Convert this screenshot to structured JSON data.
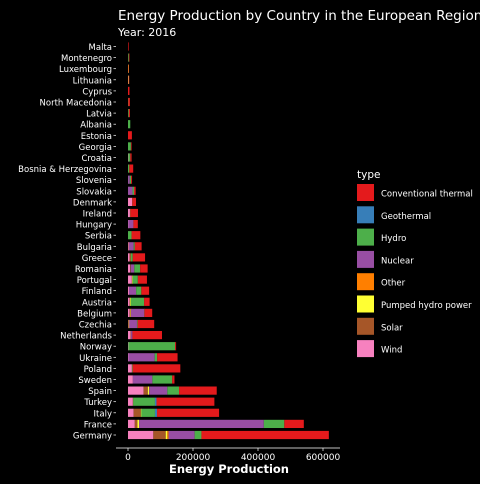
{
  "chart_data": {
    "type": "bar",
    "orientation": "horizontal",
    "stacked": true,
    "title": "Energy Production by Country in the European Region",
    "subtitle": "Year: 2016",
    "xlabel": "Energy Production",
    "ylabel": "",
    "xlim": [
      0,
      640000
    ],
    "xticks": [
      0,
      200000,
      400000,
      600000
    ],
    "xtick_labels": [
      "0",
      "200000",
      "400000",
      "600000"
    ],
    "grid": false,
    "legend_position": "right",
    "legend_title": "type",
    "types": [
      "Conventional thermal",
      "Geothermal",
      "Hydro",
      "Nuclear",
      "Other",
      "Pumped hydro power",
      "Solar",
      "Wind"
    ],
    "stack_order": [
      "Wind",
      "Solar",
      "Pumped hydro power",
      "Other",
      "Nuclear",
      "Hydro",
      "Geothermal",
      "Conventional thermal"
    ],
    "colors": {
      "Conventional thermal": "#e41a1c",
      "Geothermal": "#377eb8",
      "Hydro": "#4daf4a",
      "Nuclear": "#984ea3",
      "Other": "#ff7f00",
      "Pumped hydro power": "#ffff33",
      "Solar": "#a65628",
      "Wind": "#f781bf"
    },
    "categories": [
      "Malta",
      "Montenegro",
      "Luxembourg",
      "Lithuania",
      "Cyprus",
      "North Macedonia",
      "Latvia",
      "Albania",
      "Estonia",
      "Georgia",
      "Croatia",
      "Bosnia & Herzegovina",
      "Slovenia",
      "Slovakia",
      "Denmark",
      "Ireland",
      "Hungary",
      "Serbia",
      "Bulgaria",
      "Greece",
      "Romania",
      "Portugal",
      "Finland",
      "Austria",
      "Belgium",
      "Czechia",
      "Netherlands",
      "Norway",
      "Ukraine",
      "Poland",
      "Sweden",
      "Spain",
      "Turkey",
      "Italy",
      "France",
      "Germany"
    ],
    "series": [
      {
        "name": "Wind",
        "values": [
          0,
          0,
          0,
          600,
          0,
          0,
          0,
          0,
          0,
          0,
          1000,
          0,
          0,
          0,
          13000,
          6000,
          700,
          0,
          1400,
          5000,
          6600,
          12000,
          3000,
          5000,
          5000,
          500,
          8000,
          1000,
          1000,
          12000,
          15000,
          48000,
          15000,
          17500,
          21000,
          78000
        ]
      },
      {
        "name": "Solar",
        "values": [
          0,
          0,
          0,
          0,
          0,
          0,
          0,
          0,
          0,
          0,
          0,
          0,
          0,
          0,
          700,
          0,
          0,
          0,
          1000,
          4000,
          1800,
          800,
          0,
          1000,
          3000,
          2100,
          1600,
          0,
          0,
          0,
          0,
          13000,
          1000,
          22000,
          8000,
          38000
        ]
      },
      {
        "name": "Pumped hydro power",
        "values": [
          0,
          0,
          1000,
          800,
          0,
          0,
          0,
          0,
          0,
          0,
          0,
          0,
          0,
          0,
          0,
          0,
          0,
          0,
          0,
          0,
          0,
          1500,
          0,
          2500,
          1200,
          1000,
          0,
          0,
          0,
          0,
          0,
          4000,
          0,
          1500,
          5000,
          5000
        ]
      },
      {
        "name": "Other",
        "values": [
          0,
          0,
          0,
          0,
          0,
          0,
          0,
          0,
          0,
          0,
          0,
          0,
          0,
          0,
          0,
          0,
          0,
          0,
          0,
          0,
          0,
          0,
          0,
          0,
          0,
          0,
          0,
          0,
          0,
          0,
          0,
          0,
          0,
          0,
          0,
          4000
        ]
      },
      {
        "name": "Nuclear",
        "values": [
          0,
          0,
          0,
          0,
          0,
          0,
          0,
          0,
          0,
          0,
          0,
          0,
          5500,
          14000,
          0,
          0,
          16000,
          0,
          15000,
          0,
          11000,
          0,
          22000,
          0,
          41000,
          24000,
          4000,
          0,
          81000,
          0,
          60000,
          56000,
          0,
          0,
          384000,
          80000
        ]
      },
      {
        "name": "Hydro",
        "values": [
          0,
          2500,
          100,
          400,
          0,
          800,
          2500,
          7000,
          0,
          9000,
          6000,
          4000,
          4000,
          4500,
          0,
          700,
          0,
          11000,
          3500,
          5500,
          18000,
          16000,
          16000,
          41000,
          300,
          2000,
          0,
          144000,
          7500,
          2000,
          61000,
          36000,
          67000,
          42000,
          63000,
          21000
        ]
      },
      {
        "name": "Geothermal",
        "values": [
          0,
          0,
          0,
          0,
          0,
          0,
          0,
          0,
          0,
          0,
          0,
          0,
          0,
          0,
          0,
          0,
          0,
          0,
          0,
          0,
          0,
          0,
          0,
          0,
          0,
          0,
          0,
          0,
          0,
          0,
          0,
          0,
          4800,
          6300,
          0,
          0
        ]
      },
      {
        "name": "Conventional thermal",
        "values": [
          2000,
          1500,
          1500,
          1000,
          4500,
          5000,
          3500,
          0,
          12000,
          2000,
          4000,
          12000,
          3000,
          5000,
          11000,
          24000,
          13500,
          27000,
          21000,
          38000,
          23000,
          28000,
          24000,
          17000,
          24000,
          51000,
          91000,
          3000,
          63000,
          147000,
          7000,
          116000,
          178000,
          191000,
          60000,
          392000
        ]
      }
    ]
  }
}
